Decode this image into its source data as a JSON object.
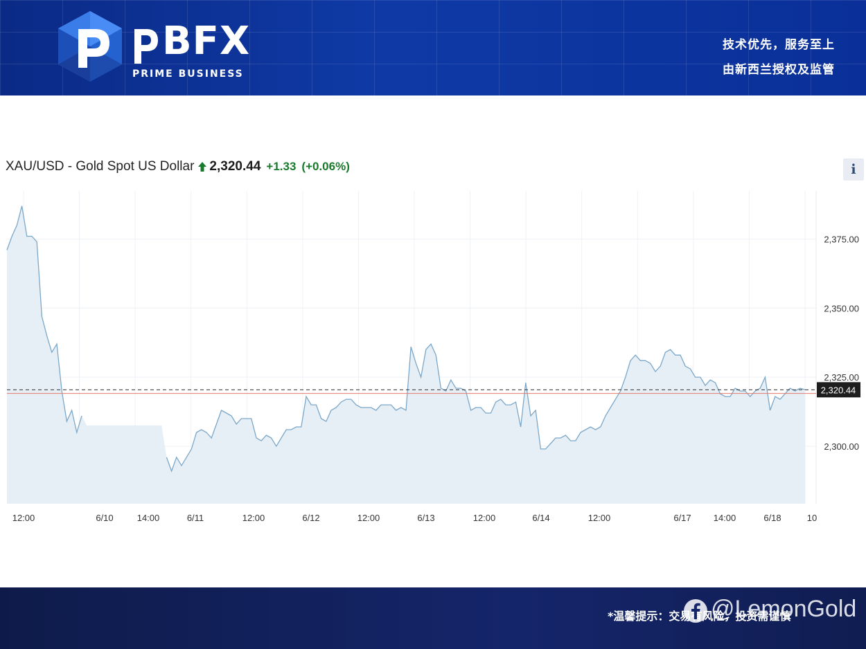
{
  "header": {
    "brand_name": "BFX",
    "brand_sub": "PRIME BUSINESS",
    "tagline_1": "技术优先，服务至上",
    "tagline_2": "由新西兰授权及监管"
  },
  "quote": {
    "symbol": "XAU/USD - Gold Spot US Dollar",
    "price": "2,320.44",
    "change": "+1.33",
    "change_pct": "(+0.06%)",
    "direction": "up",
    "up_color": "#1a7a2c",
    "info_label": "i"
  },
  "chart_data": {
    "type": "area",
    "title": "XAU/USD - Gold Spot US Dollar",
    "y_ticks": [
      "2,375.00",
      "2,350.00",
      "2,325.00",
      "2,300.00"
    ],
    "y_tick_values": [
      2375,
      2350,
      2325,
      2300
    ],
    "ylim": [
      2279.2,
      2392.4
    ],
    "x_ticks": [
      "12:00",
      "6/10",
      "14:00",
      "6/11",
      "12:00",
      "6/12",
      "12:00",
      "6/13",
      "12:00",
      "6/14",
      "12:00",
      "6/17",
      "14:00",
      "6/18",
      "10"
    ],
    "last_price_label": "2,320.44",
    "last_price": 2320.44,
    "reference_price": 2319.11,
    "grid": true,
    "line_color": "#7ba7c8",
    "fill_color": "#e6eef6",
    "reference_line_color": "#e27a6e",
    "series": [
      {
        "values": [
          2371,
          2376,
          2380,
          2387,
          2376,
          2376,
          2374,
          2347,
          2340,
          2334,
          2337,
          2320,
          2309,
          2313,
          2305,
          2311,
          null,
          null,
          null,
          null,
          null,
          null,
          null,
          null,
          null,
          null,
          null,
          null,
          null,
          null,
          null,
          null,
          2296,
          2291,
          2296,
          2293,
          2296,
          2299,
          2305,
          2306,
          2305,
          2303,
          2308,
          2313,
          2312,
          2311,
          2308,
          2310,
          2310,
          2310,
          2303,
          2302,
          2304,
          2303,
          2300,
          2303,
          2306,
          2306,
          2307,
          2307,
          2318,
          2315,
          2315,
          2310,
          2309,
          2313,
          2314,
          2316,
          2317,
          2317,
          2315,
          2314,
          2314,
          2314,
          2313,
          2315,
          2315,
          2315,
          2313,
          2314,
          2313,
          2336,
          2330,
          2325,
          2335,
          2337,
          2333,
          2321,
          2320,
          2324,
          2321,
          2321,
          2320,
          2313,
          2314,
          2314,
          2312,
          2312,
          2316,
          2317,
          2315,
          2315,
          2316,
          2307,
          2323,
          2311,
          2313,
          2299,
          2299,
          2301,
          2303,
          2303,
          2304,
          2302,
          2302,
          2305,
          2306,
          2307,
          2306,
          2307,
          2311,
          2314,
          2317,
          2320,
          2325,
          2331,
          2333,
          2331,
          2331,
          2330,
          2327,
          2329,
          2334,
          2335,
          2333,
          2333,
          2329,
          2328,
          2325,
          2325,
          2322,
          2324,
          2323,
          2319,
          2318,
          2318,
          2321,
          2320,
          2320,
          2318,
          2320,
          2321,
          2325,
          2313,
          2318,
          2317,
          2319,
          2321,
          2320,
          2321,
          2320.44
        ]
      }
    ]
  },
  "footer": {
    "notice": "*温馨提示：交易有风险，投资需谨慎",
    "watermark": "@LemonGold"
  }
}
